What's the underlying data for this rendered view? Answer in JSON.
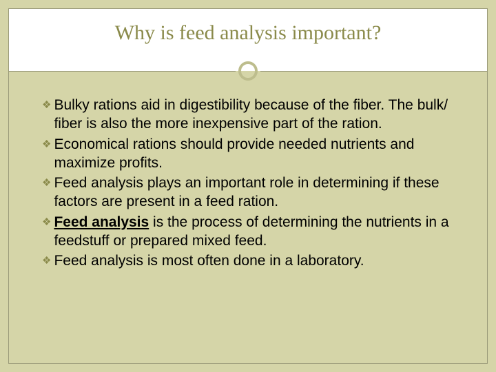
{
  "slide": {
    "title": "Why is feed analysis important?",
    "background_color": "#d5d5a8",
    "title_bg_color": "#ffffff",
    "title_color": "#8a8a4a",
    "border_color": "#9a9a7a",
    "ring_color": "#bdbd8d",
    "title_fontsize": 30,
    "body_fontsize": 21,
    "bullet_marker": "❖",
    "bullet_color": "#8a8a4a",
    "bullets": [
      {
        "text": "Bulky rations aid in digestibility because of the fiber. The bulk/ fiber is also the more inexpensive part of the ration.",
        "has_term": false
      },
      {
        "text": "Economical rations should provide needed nutrients and maximize profits.",
        "has_term": false
      },
      {
        "text": "Feed analysis plays an important role in determining if these factors are present in a feed ration.",
        "has_term": false
      },
      {
        "term": "Feed analysis",
        "rest": " is the process of determining the nutrients in a feedstuff or prepared mixed feed.",
        "has_term": true
      },
      {
        "text": "Feed analysis is most often done in a laboratory.",
        "has_term": false
      }
    ]
  }
}
